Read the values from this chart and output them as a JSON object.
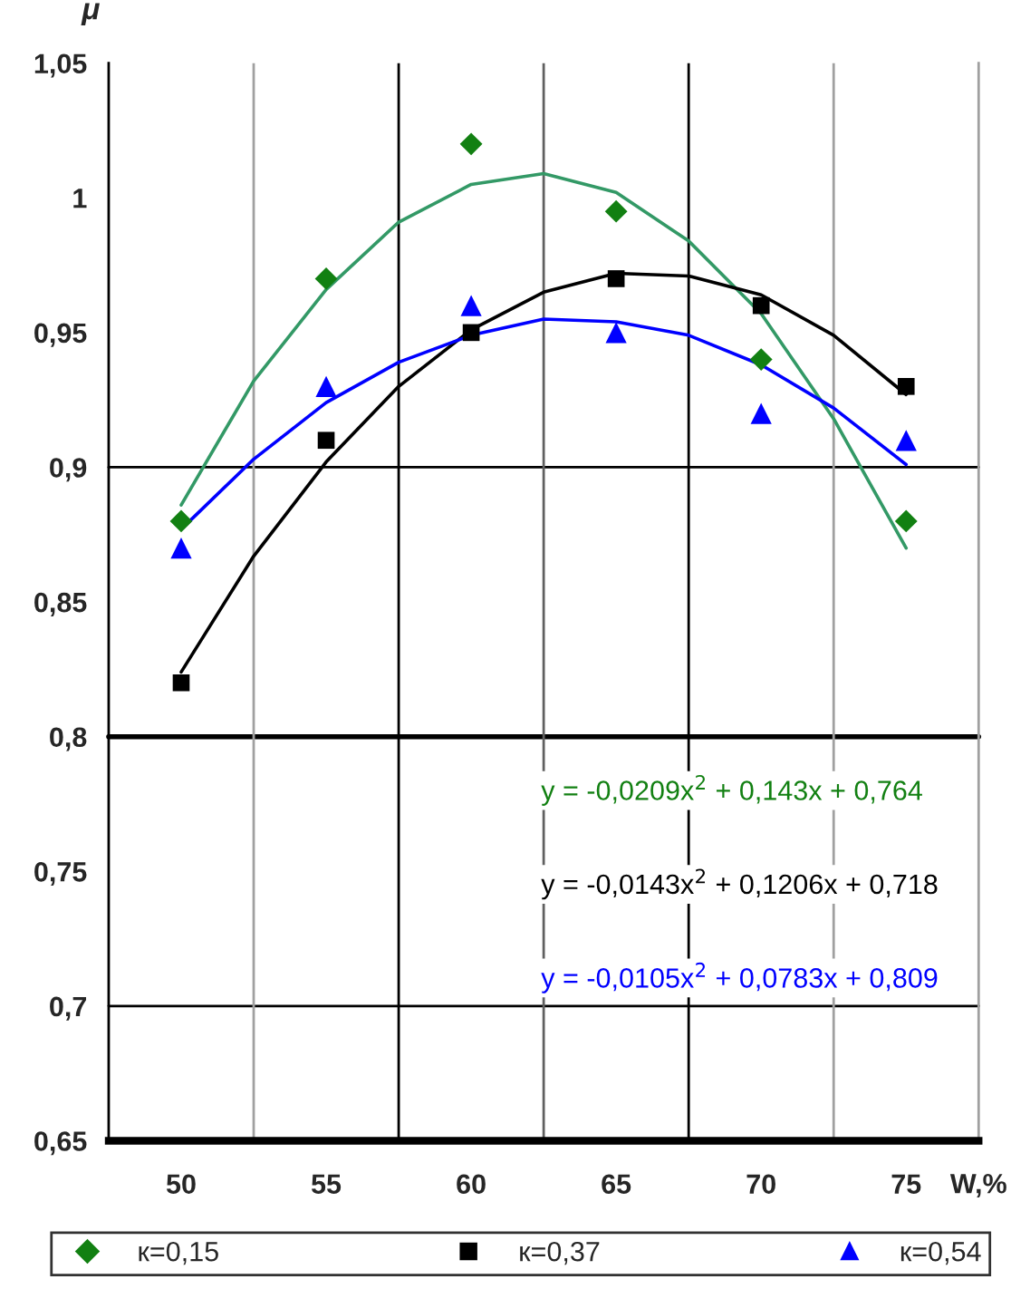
{
  "chart_data": {
    "type": "scatter",
    "xlabel": "W,%",
    "ylabel": "μ",
    "x": [
      50,
      55,
      60,
      65,
      70,
      75
    ],
    "xlim": [
      47.5,
      77.5
    ],
    "xticks": [
      {
        "value": 47.5,
        "label": null
      },
      50,
      {
        "value": 52.5,
        "label": null
      },
      55,
      {
        "value": 57.5,
        "label": null
      },
      60,
      {
        "value": 62.5,
        "label": null
      },
      65,
      {
        "value": 67.5,
        "label": null
      },
      70,
      {
        "value": 72.5,
        "label": null
      },
      75,
      {
        "value": 77.5,
        "label": null
      }
    ],
    "ylim": [
      0.65,
      1.05
    ],
    "yticks": [
      {
        "value": 0.65,
        "label": "0,65"
      },
      {
        "value": 0.7,
        "label": "0,7"
      },
      {
        "value": 0.75,
        "label": "0,75"
      },
      {
        "value": 0.8,
        "label": "0,8"
      },
      {
        "value": 0.85,
        "label": "0,85"
      },
      {
        "value": 0.9,
        "label": "0,9"
      },
      {
        "value": 0.95,
        "label": "0,95"
      },
      {
        "value": 1,
        "label": "1"
      },
      {
        "value": 1.05,
        "label": "1,05"
      }
    ],
    "grid": false,
    "legend": "bottom",
    "series": [
      {
        "name": "к=0,15",
        "marker": "diamond",
        "color": "#128012",
        "values": [
          0.88,
          0.97,
          1.02,
          0.995,
          0.94,
          0.88
        ]
      },
      {
        "name": "к=0,37",
        "marker": "square",
        "color": "#000000",
        "values": [
          0.82,
          0.91,
          0.95,
          0.97,
          0.96,
          0.93
        ]
      },
      {
        "name": "к=0,54",
        "marker": "triangle",
        "color": "#0000ff",
        "values": [
          0.87,
          0.93,
          0.96,
          0.95,
          0.92,
          0.91
        ]
      },
      {
        "type": "line",
        "marker": "none",
        "color": "#339966",
        "x": [
          50,
          52.5,
          55,
          57.5,
          60,
          62.5,
          65,
          67.5,
          70,
          72.5,
          75
        ],
        "values": [
          0.886,
          0.932,
          0.966,
          0.991,
          1.005,
          1.009,
          1.002,
          0.984,
          0.957,
          0.918,
          0.87
        ]
      },
      {
        "type": "line",
        "marker": "none",
        "color": "#000000",
        "x": [
          50,
          52.5,
          55,
          57.5,
          60,
          62.5,
          65,
          67.5,
          70,
          72.5,
          75
        ],
        "values": [
          0.824,
          0.867,
          0.902,
          0.93,
          0.951,
          0.965,
          0.972,
          0.971,
          0.964,
          0.949,
          0.927
        ]
      },
      {
        "type": "line",
        "marker": "none",
        "color": "#0000ff",
        "x": [
          50,
          52.5,
          55,
          57.5,
          60,
          62.5,
          65,
          67.5,
          70,
          72.5,
          75
        ],
        "values": [
          0.877,
          0.903,
          0.924,
          0.939,
          0.949,
          0.955,
          0.954,
          0.949,
          0.938,
          0.922,
          0.901
        ]
      }
    ],
    "ref_lines": [
      {
        "axis": "y",
        "value": 0.9,
        "color": "#000000"
      },
      {
        "axis": "y",
        "value": 0.8,
        "color": "#000000"
      },
      {
        "axis": "y",
        "value": 0.7,
        "color": "#000000"
      },
      {
        "axis": "x",
        "value": 52.5,
        "color": "#a0a0a0"
      },
      {
        "axis": "x",
        "value": 57.5,
        "color": "#000000"
      },
      {
        "axis": "x",
        "value": 62.5,
        "color": "#606060"
      },
      {
        "axis": "x",
        "value": 67.5,
        "color": "#000000"
      },
      {
        "axis": "x",
        "value": 72.5,
        "color": "#a0a0a0"
      }
    ],
    "annotations": [
      "y = -0,0209x$^{2}$ + 0,143x + 0,764",
      "y = -0,0143x$^{2}$ + 0,1206x + 0,718",
      "y = -0,0105x$^{2}$ + 0,0783x + 0,809"
    ]
  }
}
